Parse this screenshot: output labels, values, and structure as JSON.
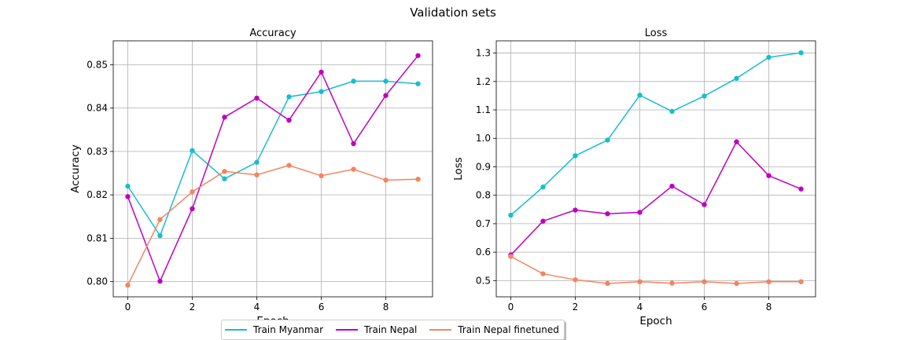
{
  "figure": {
    "suptitle": "Validation sets"
  },
  "chart_data": [
    {
      "type": "line",
      "title": "Accuracy",
      "xlabel": "Epoch",
      "ylabel": "Accuracy",
      "x": [
        0,
        1,
        2,
        3,
        4,
        5,
        6,
        7,
        8,
        9
      ],
      "xlim": [
        -0.45,
        9.45
      ],
      "ylim": [
        0.7965,
        0.8555
      ],
      "xticks": [
        0,
        2,
        4,
        6,
        8
      ],
      "yticks": [
        0.8,
        0.81,
        0.82,
        0.83,
        0.84,
        0.85
      ],
      "ytick_labels": [
        "0.80",
        "0.81",
        "0.82",
        "0.83",
        "0.84",
        "0.85"
      ],
      "grid": true,
      "series": [
        {
          "name": "Train Myanmar",
          "color": "#17becf",
          "values": [
            0.822,
            0.8106,
            0.8302,
            0.8237,
            0.8275,
            0.8426,
            0.8438,
            0.8462,
            0.8462,
            0.8456
          ]
        },
        {
          "name": "Train Nepal",
          "color": "#c000c0",
          "values": [
            0.8196,
            0.8001,
            0.8168,
            0.8379,
            0.8423,
            0.8372,
            0.8483,
            0.8318,
            0.8429,
            0.8521
          ]
        },
        {
          "name": "Train Nepal finetuned",
          "color": "#f4845f",
          "values": [
            0.7992,
            0.8143,
            0.8207,
            0.8254,
            0.8246,
            0.8268,
            0.8244,
            0.8259,
            0.8234,
            0.8236
          ]
        }
      ]
    },
    {
      "type": "line",
      "title": "Loss",
      "xlabel": "Epoch",
      "ylabel": "Loss",
      "x": [
        0,
        1,
        2,
        3,
        4,
        5,
        6,
        7,
        8,
        9
      ],
      "xlim": [
        -0.45,
        9.45
      ],
      "ylim": [
        0.443,
        1.343
      ],
      "xticks": [
        0,
        2,
        4,
        6,
        8
      ],
      "yticks": [
        0.5,
        0.6,
        0.7,
        0.8,
        0.9,
        1.0,
        1.1,
        1.2,
        1.3
      ],
      "ytick_labels": [
        "0.5",
        "0.6",
        "0.7",
        "0.8",
        "0.9",
        "1.0",
        "1.1",
        "1.2",
        "1.3"
      ],
      "grid": true,
      "series": [
        {
          "name": "Train Myanmar",
          "color": "#17becf",
          "values": [
            0.73,
            0.829,
            0.939,
            0.994,
            1.152,
            1.095,
            1.149,
            1.211,
            1.285,
            1.301
          ]
        },
        {
          "name": "Train Nepal",
          "color": "#c000c0",
          "values": [
            0.59,
            0.709,
            0.748,
            0.735,
            0.74,
            0.832,
            0.767,
            0.988,
            0.869,
            0.822
          ]
        },
        {
          "name": "Train Nepal finetuned",
          "color": "#f4845f",
          "values": [
            0.585,
            0.524,
            0.503,
            0.49,
            0.496,
            0.491,
            0.496,
            0.49,
            0.496,
            0.496
          ]
        }
      ]
    }
  ],
  "legend": {
    "position": "bottom-center",
    "items": [
      {
        "label": "Train Myanmar",
        "color": "#17becf"
      },
      {
        "label": "Train Nepal",
        "color": "#c000c0"
      },
      {
        "label": "Train Nepal finetuned",
        "color": "#f4845f"
      }
    ]
  }
}
